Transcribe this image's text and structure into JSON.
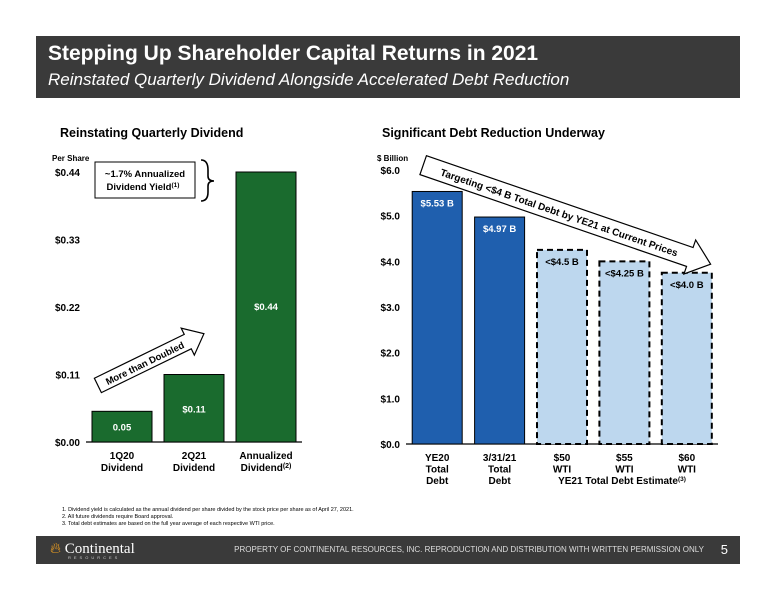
{
  "header": {
    "title": "Stepping Up Shareholder Capital Returns in 2021",
    "subtitle": "Reinstated Quarterly Dividend Alongside Accelerated Debt Reduction"
  },
  "chart_data": [
    {
      "type": "bar",
      "title": "Reinstating Quarterly Dividend",
      "ylabel": "Per Share",
      "ylim": [
        0,
        0.44
      ],
      "yticks": [
        "$0.00",
        "$0.11",
        "$0.22",
        "$0.33",
        "$0.44"
      ],
      "categories": [
        "1Q20 Dividend",
        "2Q21 Dividend",
        "Annualized Dividend"
      ],
      "category_lines": [
        [
          "1Q20",
          "Dividend"
        ],
        [
          "2Q21",
          "Dividend"
        ],
        [
          "Annualized",
          "Dividend"
        ]
      ],
      "category_sup": [
        "",
        "",
        "(2)"
      ],
      "values": [
        0.05,
        0.11,
        0.44
      ],
      "labels": [
        "0.05",
        "$0.11",
        "$0.44"
      ],
      "color": "#1a6b2e",
      "annotations": {
        "yield_line1": "~1.7% Annualized",
        "yield_line2": "Dividend Yield",
        "yield_sup": "(1)",
        "arrow_text": "More than Doubled"
      }
    },
    {
      "type": "bar",
      "title": "Significant Debt Reduction Underway",
      "ylabel": "$ Billion",
      "ylim": [
        0,
        6
      ],
      "yticks": [
        "$0.0",
        "$1.0",
        "$2.0",
        "$3.0",
        "$4.0",
        "$5.0",
        "$6.0"
      ],
      "categories": [
        "YE20 Total Debt",
        "3/31/21 Total Debt",
        "$50 WTI",
        "$55 WTI",
        "$60 WTI"
      ],
      "category_lines": [
        [
          "YE20",
          "Total",
          "Debt"
        ],
        [
          "3/31/21",
          "Total",
          "Debt"
        ],
        [
          "$50",
          "WTI"
        ],
        [
          "$55",
          "WTI"
        ],
        [
          "$60",
          "WTI"
        ]
      ],
      "values": [
        5.53,
        4.97,
        4.25,
        4.0,
        3.75
      ],
      "labels": [
        "$5.53 B",
        "$4.97 B",
        "<$4.5 B",
        "<$4.25 B",
        "<$4.0 B"
      ],
      "estimate": [
        false,
        false,
        true,
        true,
        true
      ],
      "colors": {
        "actual": "#1f5fae",
        "estimate": "#bdd7ee"
      },
      "group_label": "YE21 Total Debt Estimate",
      "group_sup": "(3)",
      "arrow_text": "Targeting <$4 B Total Debt by YE21 at Current Prices"
    }
  ],
  "notes": [
    "1. Dividend yield is calculated as the annual dividend per share divided by the stock price per share as of April 27, 2021.",
    "2. All future dividends require Board approval.",
    "3. Total debt estimates are based on the full year average of each respective WTI price."
  ],
  "footer": {
    "logo": "Continental",
    "logo_sub": "RESOURCES",
    "property": "PROPERTY OF CONTINENTAL RESOURCES, INC. REPRODUCTION AND DISTRIBUTION WITH WRITTEN PERMISSION ONLY",
    "page": "5"
  }
}
